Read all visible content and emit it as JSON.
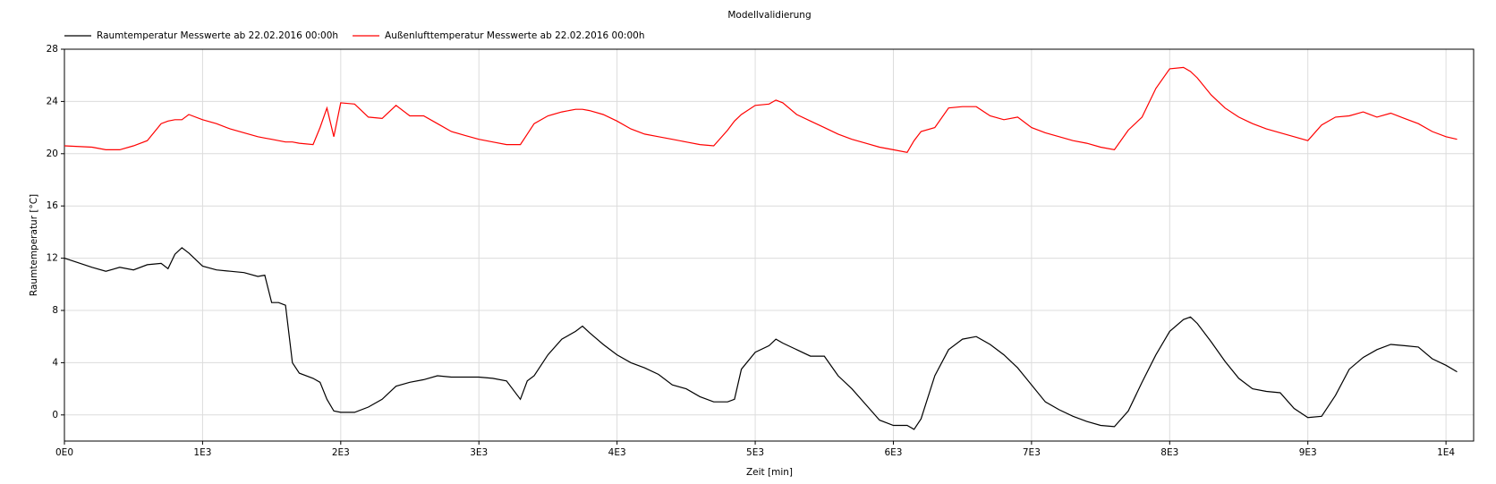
{
  "chart_data": {
    "type": "line",
    "title": "Modellvalidierung",
    "x_label": "Zeit [min]",
    "y_label": "Raumtemperatur [°C]",
    "x": [
      0,
      200,
      300,
      400,
      500,
      600,
      700,
      750,
      800,
      850,
      900,
      1000,
      1100,
      1200,
      1300,
      1400,
      1450,
      1500,
      1550,
      1600,
      1650,
      1700,
      1800,
      1850,
      1900,
      1950,
      2000,
      2100,
      2200,
      2300,
      2400,
      2500,
      2600,
      2700,
      2800,
      2900,
      3000,
      3100,
      3200,
      3300,
      3350,
      3400,
      3500,
      3600,
      3700,
      3750,
      3800,
      3900,
      4000,
      4100,
      4200,
      4300,
      4400,
      4500,
      4600,
      4700,
      4800,
      4850,
      4900,
      5000,
      5100,
      5150,
      5200,
      5300,
      5400,
      5500,
      5600,
      5700,
      5800,
      5900,
      6000,
      6100,
      6150,
      6200,
      6300,
      6400,
      6500,
      6600,
      6700,
      6800,
      6900,
      7000,
      7100,
      7200,
      7300,
      7400,
      7500,
      7600,
      7700,
      7800,
      7900,
      8000,
      8100,
      8150,
      8200,
      8300,
      8400,
      8500,
      8600,
      8700,
      8800,
      8900,
      9000,
      9100,
      9200,
      9300,
      9400,
      9500,
      9600,
      9700,
      9800,
      9900,
      10000,
      10080
    ],
    "series": [
      {
        "name": "Raumtemperatur Messwerte ab 22.02.2016 00:00h",
        "color": "#000000",
        "values": [
          12,
          11.3,
          11.0,
          11.3,
          11.1,
          11.5,
          11.6,
          11.2,
          12.3,
          12.8,
          12.4,
          11.4,
          11.1,
          11.0,
          10.9,
          10.6,
          10.7,
          8.6,
          8.6,
          8.4,
          4,
          3.2,
          2.8,
          2.5,
          1.2,
          0.3,
          0.2,
          0.2,
          0.6,
          1.2,
          2.2,
          2.5,
          2.7,
          3.0,
          2.9,
          2.9,
          2.9,
          2.8,
          2.6,
          1.2,
          2.6,
          3.0,
          4.6,
          5.8,
          6.4,
          6.8,
          6.3,
          5.4,
          4.6,
          4.0,
          3.6,
          3.1,
          2.3,
          2.0,
          1.4,
          1.0,
          1.0,
          1.2,
          3.5,
          4.8,
          5.3,
          5.8,
          5.5,
          5.0,
          4.5,
          4.5,
          3.0,
          2.0,
          0.8,
          -0.4,
          -0.8,
          -0.8,
          -1.1,
          -0.3,
          3.0,
          5.0,
          5.8,
          6.0,
          5.4,
          4.6,
          3.6,
          2.3,
          1.0,
          0.4,
          -0.1,
          -0.5,
          -0.8,
          -0.9,
          0.3,
          2.5,
          4.6,
          6.4,
          7.3,
          7.5,
          7.0,
          5.6,
          4.1,
          2.8,
          2.0,
          1.8,
          1.7,
          0.5,
          -0.2,
          -0.1,
          1.5,
          3.5,
          4.4,
          5.0,
          5.4,
          5.3,
          5.2,
          4.3,
          3.8,
          3.3
        ]
      },
      {
        "name": "Außenlufttemperatur Messwerte ab 22.02.2016 00:00h",
        "color": "#ff0000",
        "values": [
          20.6,
          20.5,
          20.3,
          20.3,
          20.6,
          21,
          22.3,
          22.5,
          22.6,
          22.6,
          23.0,
          22.6,
          22.3,
          21.9,
          21.6,
          21.3,
          21.2,
          21.1,
          21.0,
          20.9,
          20.9,
          20.8,
          20.7,
          22,
          23.5,
          21.3,
          23.9,
          23.8,
          22.8,
          22.7,
          23.7,
          22.9,
          22.9,
          22.3,
          21.7,
          21.4,
          21.1,
          20.9,
          20.7,
          20.7,
          21.5,
          22.3,
          22.9,
          23.2,
          23.4,
          23.4,
          23.3,
          23.0,
          22.5,
          21.9,
          21.5,
          21.3,
          21.1,
          20.9,
          20.7,
          20.6,
          21.8,
          22.5,
          23.0,
          23.7,
          23.8,
          24.1,
          23.9,
          23.0,
          22.5,
          22.0,
          21.5,
          21.1,
          20.8,
          20.5,
          20.3,
          20.1,
          21.0,
          21.7,
          22.0,
          23.5,
          23.6,
          23.6,
          22.9,
          22.6,
          22.8,
          22.0,
          21.6,
          21.3,
          21.0,
          20.8,
          20.5,
          20.3,
          21.8,
          22.8,
          25.0,
          26.5,
          26.6,
          26.3,
          25.8,
          24.5,
          23.5,
          22.8,
          22.3,
          21.9,
          21.6,
          21.3,
          21.0,
          22.2,
          22.8,
          22.9,
          23.2,
          22.8,
          23.1,
          22.7,
          22.3,
          21.7,
          21.3,
          21.1
        ]
      }
    ],
    "xlim": [
      0,
      10200
    ],
    "xticks": [
      {
        "value": 0,
        "label": "0E0"
      },
      {
        "value": 1000,
        "label": "1E3"
      },
      {
        "value": 2000,
        "label": "2E3"
      },
      {
        "value": 3000,
        "label": "3E3"
      },
      {
        "value": 4000,
        "label": "4E3"
      },
      {
        "value": 5000,
        "label": "5E3"
      },
      {
        "value": 6000,
        "label": "6E3"
      },
      {
        "value": 7000,
        "label": "7E3"
      },
      {
        "value": 8000,
        "label": "8E3"
      },
      {
        "value": 9000,
        "label": "9E3"
      },
      {
        "value": 10000,
        "label": "1E4"
      }
    ],
    "ylim": [
      -2,
      28
    ],
    "yticks": [
      0,
      4,
      8,
      12,
      16,
      20,
      24,
      28
    ],
    "grid": true
  }
}
